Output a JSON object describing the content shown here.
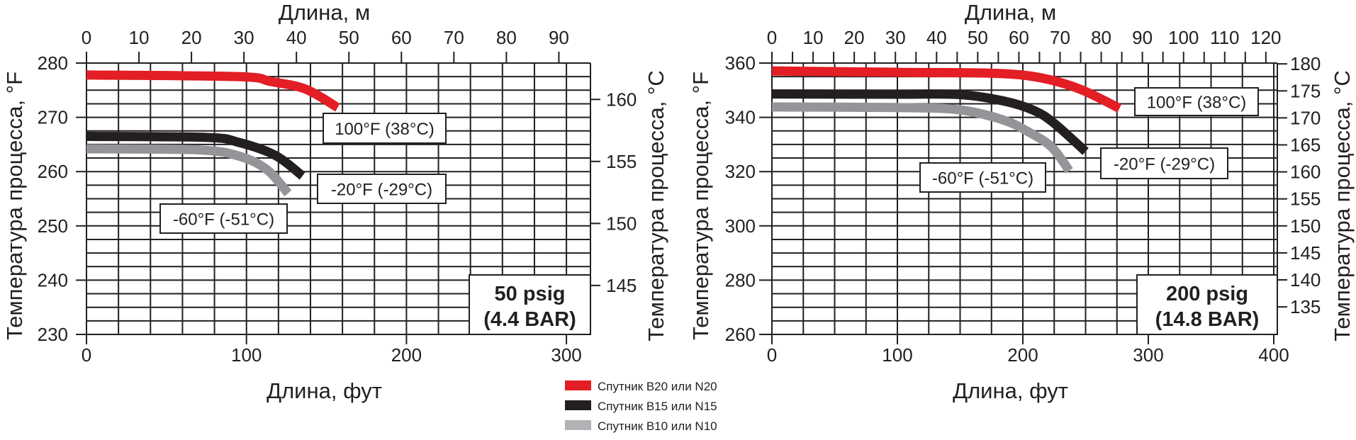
{
  "chart_data": [
    {
      "type": "line",
      "x_unit_top": "m",
      "xlabel_top": "Длина, м",
      "xlabel": "Длина, фут",
      "ylabel": "Температура процесса, °F",
      "ylabel_right": "Температура процесса, °C",
      "xlim_ft": [
        0,
        315
      ],
      "ylim": [
        230,
        280
      ],
      "x_ticks_ft": [
        0,
        100,
        200,
        300
      ],
      "x_ticks_m": [
        0,
        10,
        20,
        30,
        40,
        50,
        60,
        70,
        80,
        90
      ],
      "y_ticks": [
        230,
        240,
        250,
        260,
        270,
        280
      ],
      "y_ticks_right": [
        145,
        150,
        155,
        160
      ],
      "y_right_ref": {
        "c": 160,
        "f": 273.3,
        "f_per_c": 2.285
      },
      "grid": true,
      "grid_x_step_ft": 20,
      "grid_y_step": 2.5,
      "pressure_label": [
        "50 psig",
        "(4.4 BAR)"
      ],
      "series": [
        {
          "name": "Спутник B20 или N20",
          "color": "#e31e24",
          "label": "100°F (38°C)",
          "points": [
            [
              0,
              277.8
            ],
            [
              95,
              277.5
            ],
            [
              115,
              276.6
            ],
            [
              137,
              275.2
            ],
            [
              157,
              271.8
            ]
          ]
        },
        {
          "name": "Спутник B15 или N15",
          "color": "#231f20",
          "label": "-20°F (-29°C)",
          "points": [
            [
              0,
              266.5
            ],
            [
              75,
              266.3
            ],
            [
              95,
              265.4
            ],
            [
              118,
              263.0
            ],
            [
              135,
              259.2
            ]
          ]
        },
        {
          "name": "Спутник B10 или N10",
          "color": "#939598",
          "label": "-60°F (-51°C)",
          "points": [
            [
              0,
              264.2
            ],
            [
              70,
              264.0
            ],
            [
              96,
              262.8
            ],
            [
              113,
              260.3
            ],
            [
              126,
              256.0
            ]
          ]
        }
      ]
    },
    {
      "type": "line",
      "x_unit_top": "m",
      "xlabel_top": "Длина, м",
      "xlabel": "Длина, фут",
      "ylabel": "Температура процесса, °F",
      "ylabel_right": "Температура процесса, °C",
      "xlim_ft": [
        0,
        403
      ],
      "ylim": [
        260,
        360
      ],
      "x_ticks_ft": [
        0,
        100,
        200,
        300,
        400
      ],
      "x_ticks_m": [
        0,
        10,
        20,
        30,
        40,
        50,
        60,
        70,
        80,
        90,
        100,
        110,
        120
      ],
      "y_ticks": [
        260,
        280,
        300,
        320,
        340,
        360
      ],
      "y_ticks_right": [
        135,
        140,
        145,
        150,
        155,
        160,
        165,
        170,
        175,
        180
      ],
      "y_right_ref": {
        "c": 180,
        "f": 359.7,
        "f_per_c": 1.99
      },
      "grid": true,
      "grid_x_step_ft": 25,
      "grid_y_step": 5,
      "pressure_label": [
        "200 psig",
        "(14.8 BAR)"
      ],
      "series": [
        {
          "name": "Спутник B20 или N20",
          "color": "#e31e24",
          "label": "100°F (38°C)",
          "points": [
            [
              0,
              357.1
            ],
            [
              100,
              356.6
            ],
            [
              178,
              356.2
            ],
            [
              215,
              354.5
            ],
            [
              246,
              350.3
            ],
            [
              277,
              343.3
            ]
          ]
        },
        {
          "name": "Спутник B15 или N15",
          "color": "#231f20",
          "label": "-20°F (-29°C)",
          "points": [
            [
              0,
              348.6
            ],
            [
              100,
              348.5
            ],
            [
              149,
              348.4
            ],
            [
              185,
              346.0
            ],
            [
              209,
              342.5
            ],
            [
              225,
              337.8
            ],
            [
              250,
              327.4
            ]
          ]
        },
        {
          "name": "Спутник B10 или N10",
          "color": "#939598",
          "label": "-60°F (-51°C)",
          "points": [
            [
              0,
              343.8
            ],
            [
              100,
              343.6
            ],
            [
              149,
              342.8
            ],
            [
              184,
              339.1
            ],
            [
              205,
              334.5
            ],
            [
              223,
              329.0
            ],
            [
              237,
              320.3
            ]
          ]
        }
      ]
    }
  ],
  "legend": [
    {
      "label": "Спутник B20 или N20",
      "color": "#e31e24"
    },
    {
      "label": "Спутник B15 или N15",
      "color": "#231f20"
    },
    {
      "label": "Спутник B10 или N10",
      "color": "#b1b3b6"
    }
  ]
}
